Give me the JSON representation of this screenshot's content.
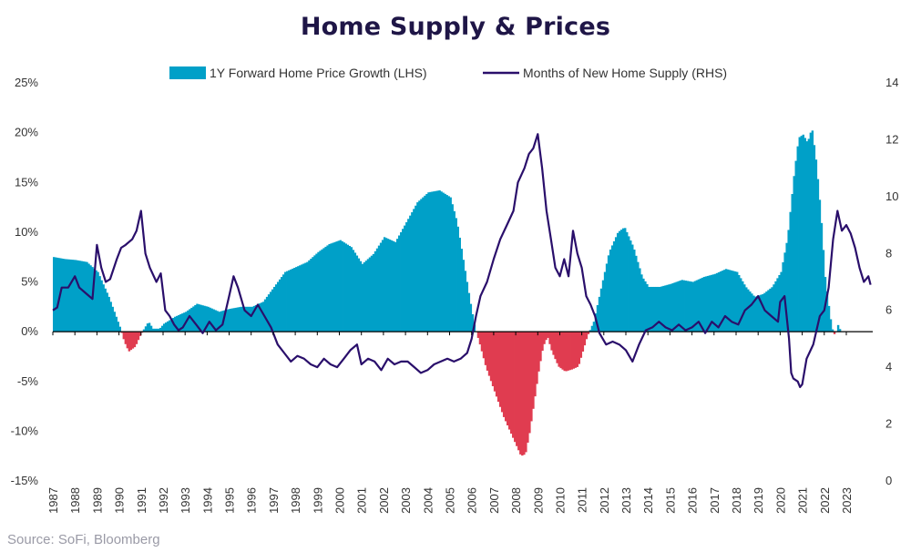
{
  "chart_data": {
    "type": "bar+line",
    "title": "Home Supply & Prices",
    "source": "Source: SoFi, Bloomberg",
    "legend": {
      "placement": "top"
    },
    "colors": {
      "positive": "#00a0c8",
      "negative": "#e03c50",
      "line": "#2a0f6b",
      "axis": "#000000"
    },
    "y_left": {
      "ylim": [
        -15,
        25
      ],
      "ticks": [
        -15,
        -10,
        -5,
        0,
        5,
        10,
        15,
        20,
        25
      ],
      "tick_labels": [
        "-15%",
        "-10%",
        "-5%",
        "0%",
        "5%",
        "10%",
        "15%",
        "20%",
        "25%"
      ]
    },
    "y_right": {
      "ylim": [
        0,
        14
      ],
      "ticks": [
        0,
        2,
        4,
        6,
        8,
        10,
        12,
        14
      ],
      "tick_labels": [
        "0",
        "2",
        "4",
        "6",
        "8",
        "10",
        "12",
        "14"
      ]
    },
    "x_range": [
      1987.0,
      2024.2
    ],
    "x_tick_labels": [
      "1987",
      "1988",
      "1989",
      "1990",
      "1991",
      "1992",
      "1993",
      "1994",
      "1995",
      "1996",
      "1997",
      "1998",
      "1999",
      "2000",
      "2001",
      "2002",
      "2003",
      "2004",
      "2005",
      "2006",
      "2007",
      "2008",
      "2009",
      "2010",
      "2011",
      "2012",
      "2013",
      "2014",
      "2015",
      "2016",
      "2017",
      "2018",
      "2019",
      "2020",
      "2021",
      "2022",
      "2023"
    ],
    "series": [
      {
        "name": "1Y Forward Home Price Growth (LHS)",
        "type": "bar",
        "axis": "left",
        "points": [
          [
            1987.0,
            7.5
          ],
          [
            1987.5,
            7.3
          ],
          [
            1988.0,
            7.2
          ],
          [
            1988.5,
            7.0
          ],
          [
            1989.0,
            6.0
          ],
          [
            1989.5,
            3.5
          ],
          [
            1990.0,
            0.5
          ],
          [
            1990.2,
            -1.0
          ],
          [
            1990.4,
            -2.0
          ],
          [
            1990.7,
            -1.5
          ],
          [
            1990.9,
            -0.5
          ],
          [
            1991.1,
            0.3
          ],
          [
            1991.3,
            1.0
          ],
          [
            1991.5,
            0.3
          ],
          [
            1991.8,
            0.3
          ],
          [
            1992.0,
            0.8
          ],
          [
            1992.5,
            1.5
          ],
          [
            1993.0,
            2.0
          ],
          [
            1993.5,
            2.8
          ],
          [
            1994.0,
            2.5
          ],
          [
            1994.5,
            2.0
          ],
          [
            1995.0,
            2.3
          ],
          [
            1995.5,
            2.5
          ],
          [
            1996.0,
            2.5
          ],
          [
            1996.5,
            3.0
          ],
          [
            1997.0,
            4.5
          ],
          [
            1997.5,
            6.0
          ],
          [
            1998.0,
            6.5
          ],
          [
            1998.5,
            7.0
          ],
          [
            1999.0,
            8.0
          ],
          [
            1999.5,
            8.8
          ],
          [
            2000.0,
            9.2
          ],
          [
            2000.5,
            8.5
          ],
          [
            2001.0,
            6.8
          ],
          [
            2001.5,
            7.8
          ],
          [
            2002.0,
            9.5
          ],
          [
            2002.5,
            9.0
          ],
          [
            2003.0,
            11.0
          ],
          [
            2003.5,
            13.0
          ],
          [
            2004.0,
            14.0
          ],
          [
            2004.5,
            14.2
          ],
          [
            2005.0,
            13.5
          ],
          [
            2005.3,
            11.0
          ],
          [
            2005.6,
            7.0
          ],
          [
            2005.9,
            3.0
          ],
          [
            2006.1,
            0.5
          ],
          [
            2006.3,
            -1.0
          ],
          [
            2006.6,
            -3.5
          ],
          [
            2007.0,
            -6.0
          ],
          [
            2007.4,
            -8.5
          ],
          [
            2007.8,
            -10.5
          ],
          [
            2008.0,
            -11.5
          ],
          [
            2008.2,
            -12.5
          ],
          [
            2008.4,
            -12.3
          ],
          [
            2008.6,
            -10.0
          ],
          [
            2008.8,
            -7.0
          ],
          [
            2009.0,
            -4.0
          ],
          [
            2009.2,
            -1.5
          ],
          [
            2009.4,
            -0.5
          ],
          [
            2009.6,
            -2.0
          ],
          [
            2009.9,
            -3.5
          ],
          [
            2010.2,
            -4.0
          ],
          [
            2010.5,
            -3.8
          ],
          [
            2010.8,
            -3.5
          ],
          [
            2011.0,
            -2.0
          ],
          [
            2011.2,
            -0.5
          ],
          [
            2011.5,
            1.0
          ],
          [
            2011.8,
            4.0
          ],
          [
            2012.2,
            8.0
          ],
          [
            2012.6,
            10.0
          ],
          [
            2012.9,
            10.5
          ],
          [
            2013.3,
            8.5
          ],
          [
            2013.7,
            5.5
          ],
          [
            2014.0,
            4.5
          ],
          [
            2014.5,
            4.5
          ],
          [
            2015.0,
            4.8
          ],
          [
            2015.5,
            5.2
          ],
          [
            2016.0,
            5.0
          ],
          [
            2016.5,
            5.5
          ],
          [
            2017.0,
            5.8
          ],
          [
            2017.5,
            6.3
          ],
          [
            2018.0,
            6.0
          ],
          [
            2018.4,
            4.5
          ],
          [
            2018.8,
            3.5
          ],
          [
            2019.2,
            3.8
          ],
          [
            2019.6,
            4.5
          ],
          [
            2020.0,
            6.0
          ],
          [
            2020.3,
            9.5
          ],
          [
            2020.6,
            16.0
          ],
          [
            2020.8,
            19.5
          ],
          [
            2021.0,
            19.8
          ],
          [
            2021.2,
            19.0
          ],
          [
            2021.4,
            20.5
          ],
          [
            2021.6,
            17.0
          ],
          [
            2021.8,
            12.0
          ],
          [
            2022.0,
            5.5
          ],
          [
            2022.2,
            2.0
          ],
          [
            2022.3,
            0.5
          ],
          [
            2022.4,
            -0.3
          ],
          [
            2022.5,
            0
          ],
          [
            2022.6,
            0.8
          ],
          [
            2022.7,
            0
          ]
        ]
      },
      {
        "name": "Months of New Home Supply (RHS)",
        "type": "line",
        "axis": "right",
        "points": [
          [
            1987.0,
            6.0
          ],
          [
            1987.2,
            6.1
          ],
          [
            1987.4,
            6.8
          ],
          [
            1987.7,
            6.8
          ],
          [
            1988.0,
            7.2
          ],
          [
            1988.2,
            6.8
          ],
          [
            1988.5,
            6.6
          ],
          [
            1988.8,
            6.4
          ],
          [
            1989.0,
            8.3
          ],
          [
            1989.2,
            7.5
          ],
          [
            1989.4,
            7.0
          ],
          [
            1989.6,
            7.1
          ],
          [
            1989.9,
            7.8
          ],
          [
            1990.1,
            8.2
          ],
          [
            1990.3,
            8.3
          ],
          [
            1990.6,
            8.5
          ],
          [
            1990.8,
            8.8
          ],
          [
            1991.0,
            9.5
          ],
          [
            1991.2,
            8.0
          ],
          [
            1991.4,
            7.5
          ],
          [
            1991.7,
            7.0
          ],
          [
            1991.9,
            7.3
          ],
          [
            1992.1,
            6.0
          ],
          [
            1992.3,
            5.8
          ],
          [
            1992.5,
            5.5
          ],
          [
            1992.7,
            5.3
          ],
          [
            1992.9,
            5.4
          ],
          [
            1993.2,
            5.8
          ],
          [
            1993.5,
            5.5
          ],
          [
            1993.8,
            5.2
          ],
          [
            1994.1,
            5.6
          ],
          [
            1994.4,
            5.3
          ],
          [
            1994.7,
            5.5
          ],
          [
            1995.0,
            6.5
          ],
          [
            1995.2,
            7.2
          ],
          [
            1995.4,
            6.8
          ],
          [
            1995.7,
            6.0
          ],
          [
            1996.0,
            5.8
          ],
          [
            1996.3,
            6.2
          ],
          [
            1996.6,
            5.8
          ],
          [
            1996.9,
            5.4
          ],
          [
            1997.2,
            4.8
          ],
          [
            1997.5,
            4.5
          ],
          [
            1997.8,
            4.2
          ],
          [
            1998.1,
            4.4
          ],
          [
            1998.4,
            4.3
          ],
          [
            1998.7,
            4.1
          ],
          [
            1999.0,
            4.0
          ],
          [
            1999.3,
            4.3
          ],
          [
            1999.6,
            4.1
          ],
          [
            1999.9,
            4.0
          ],
          [
            2000.2,
            4.3
          ],
          [
            2000.5,
            4.6
          ],
          [
            2000.8,
            4.8
          ],
          [
            2001.0,
            4.1
          ],
          [
            2001.3,
            4.3
          ],
          [
            2001.6,
            4.2
          ],
          [
            2001.9,
            3.9
          ],
          [
            2002.2,
            4.3
          ],
          [
            2002.5,
            4.1
          ],
          [
            2002.8,
            4.2
          ],
          [
            2003.1,
            4.2
          ],
          [
            2003.4,
            4.0
          ],
          [
            2003.7,
            3.8
          ],
          [
            2004.0,
            3.9
          ],
          [
            2004.3,
            4.1
          ],
          [
            2004.6,
            4.2
          ],
          [
            2004.9,
            4.3
          ],
          [
            2005.2,
            4.2
          ],
          [
            2005.5,
            4.3
          ],
          [
            2005.8,
            4.5
          ],
          [
            2006.0,
            5.0
          ],
          [
            2006.2,
            5.8
          ],
          [
            2006.4,
            6.5
          ],
          [
            2006.7,
            7.0
          ],
          [
            2007.0,
            7.8
          ],
          [
            2007.3,
            8.5
          ],
          [
            2007.6,
            9.0
          ],
          [
            2007.9,
            9.5
          ],
          [
            2008.1,
            10.5
          ],
          [
            2008.4,
            11.0
          ],
          [
            2008.6,
            11.5
          ],
          [
            2008.8,
            11.7
          ],
          [
            2009.0,
            12.2
          ],
          [
            2009.2,
            11.0
          ],
          [
            2009.4,
            9.5
          ],
          [
            2009.6,
            8.5
          ],
          [
            2009.8,
            7.5
          ],
          [
            2010.0,
            7.2
          ],
          [
            2010.2,
            7.8
          ],
          [
            2010.4,
            7.2
          ],
          [
            2010.6,
            8.8
          ],
          [
            2010.8,
            8.0
          ],
          [
            2011.0,
            7.5
          ],
          [
            2011.2,
            6.5
          ],
          [
            2011.4,
            6.2
          ],
          [
            2011.6,
            5.8
          ],
          [
            2011.8,
            5.2
          ],
          [
            2012.1,
            4.8
          ],
          [
            2012.4,
            4.9
          ],
          [
            2012.7,
            4.8
          ],
          [
            2013.0,
            4.6
          ],
          [
            2013.3,
            4.2
          ],
          [
            2013.6,
            4.8
          ],
          [
            2013.9,
            5.3
          ],
          [
            2014.2,
            5.4
          ],
          [
            2014.5,
            5.6
          ],
          [
            2014.8,
            5.4
          ],
          [
            2015.1,
            5.3
          ],
          [
            2015.4,
            5.5
          ],
          [
            2015.7,
            5.3
          ],
          [
            2016.0,
            5.4
          ],
          [
            2016.3,
            5.6
          ],
          [
            2016.6,
            5.2
          ],
          [
            2016.9,
            5.6
          ],
          [
            2017.2,
            5.4
          ],
          [
            2017.5,
            5.8
          ],
          [
            2017.8,
            5.6
          ],
          [
            2018.1,
            5.5
          ],
          [
            2018.4,
            6.0
          ],
          [
            2018.7,
            6.2
          ],
          [
            2019.0,
            6.5
          ],
          [
            2019.3,
            6.0
          ],
          [
            2019.6,
            5.8
          ],
          [
            2019.9,
            5.6
          ],
          [
            2020.0,
            6.3
          ],
          [
            2020.2,
            6.5
          ],
          [
            2020.4,
            5.0
          ],
          [
            2020.5,
            3.8
          ],
          [
            2020.6,
            3.6
          ],
          [
            2020.8,
            3.5
          ],
          [
            2020.9,
            3.3
          ],
          [
            2021.0,
            3.4
          ],
          [
            2021.2,
            4.3
          ],
          [
            2021.5,
            4.8
          ],
          [
            2021.8,
            5.8
          ],
          [
            2022.0,
            6.0
          ],
          [
            2022.2,
            6.8
          ],
          [
            2022.4,
            8.5
          ],
          [
            2022.6,
            9.5
          ],
          [
            2022.8,
            8.8
          ],
          [
            2023.0,
            9.0
          ],
          [
            2023.2,
            8.7
          ],
          [
            2023.4,
            8.2
          ],
          [
            2023.6,
            7.5
          ],
          [
            2023.8,
            7.0
          ],
          [
            2024.0,
            7.2
          ],
          [
            2024.1,
            6.9
          ]
        ]
      }
    ]
  }
}
